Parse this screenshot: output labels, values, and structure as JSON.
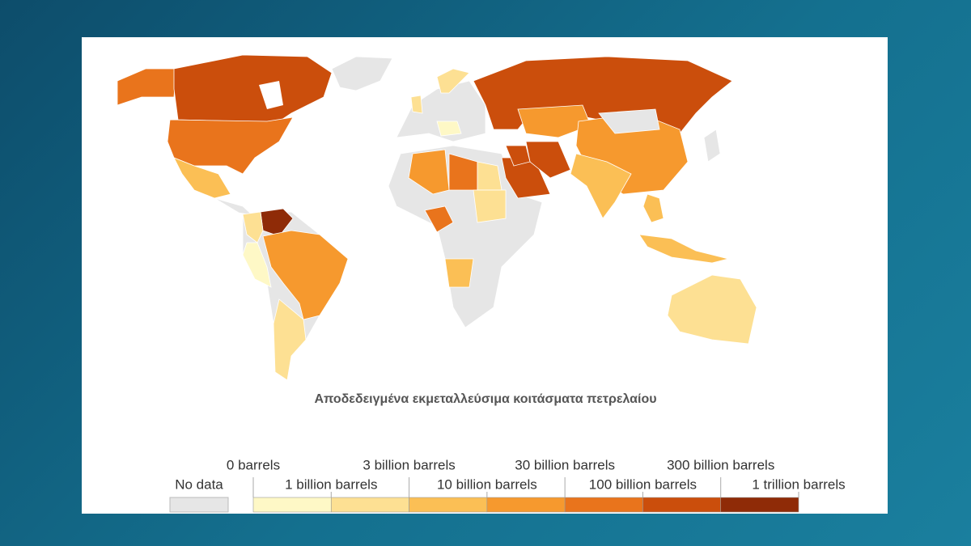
{
  "map": {
    "title": "Αποδεδειγμένα εκμεταλλεύσιμα κοιτάσματα πετρελαίου",
    "legend": {
      "no_data": {
        "label": "No data",
        "color": "#e6e6e6"
      },
      "thresholds": [
        "0 barrels",
        "1 billion barrels",
        "3 billion barrels",
        "10 billion barrels",
        "30 billion barrels",
        "100 billion barrels",
        "300 billion barrels",
        "1 trillion barrels"
      ],
      "colors": [
        "#fef8c6",
        "#fde093",
        "#fbbf55",
        "#f6992e",
        "#e9741c",
        "#cb4e0c",
        "#8f2b07"
      ]
    }
  }
}
